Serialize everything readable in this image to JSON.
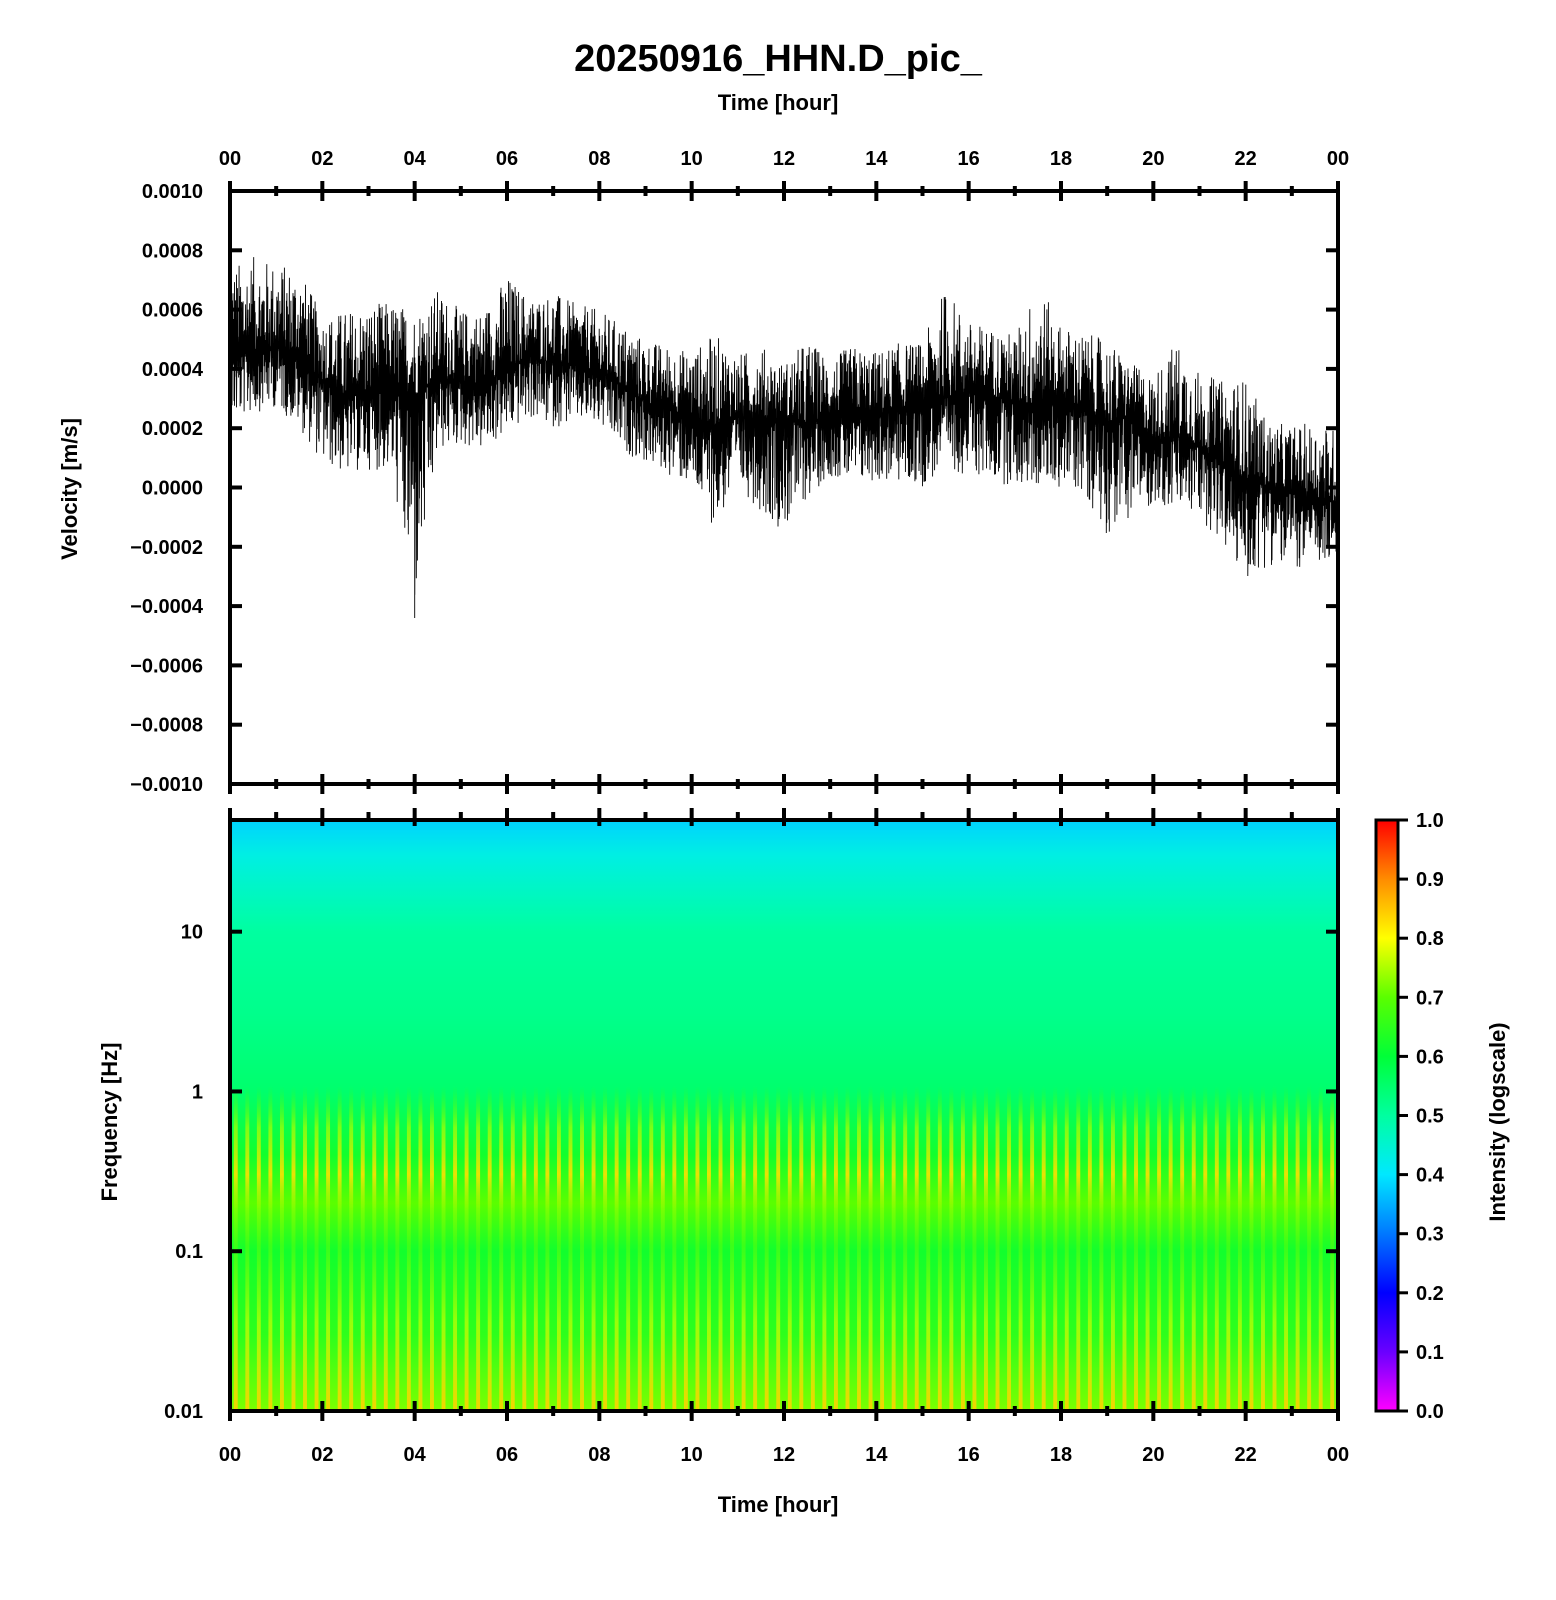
{
  "figure": {
    "title": "20250916_HHN.D_pic_",
    "top_xlabel": "Time [hour]",
    "bottom_xlabel": "Time [hour]",
    "colorbar_label": "Intensity (logscale)"
  },
  "chart_data": [
    {
      "type": "line",
      "ylabel": "Velocity [m/s]",
      "xlabel": "Time [hour]",
      "xlim": [
        0,
        24
      ],
      "ylim": [
        -0.001,
        0.001
      ],
      "xticks": [
        "00",
        "02",
        "04",
        "06",
        "08",
        "10",
        "12",
        "14",
        "16",
        "18",
        "20",
        "22",
        "00"
      ],
      "yticks": [
        "0.0010",
        "0.0008",
        "0.0006",
        "0.0004",
        "0.0002",
        "0.0000",
        "−0.0002",
        "−0.0004",
        "−0.0006",
        "−0.0008",
        "−0.0010"
      ],
      "series": [
        {
          "x": [
            0,
            0.5,
            1,
            1.5,
            2,
            2.5,
            3,
            3.5,
            4,
            4.5,
            5,
            5.5,
            6,
            6.5,
            7,
            7.5,
            8,
            8.5,
            9,
            9.5,
            10,
            10.5,
            11,
            11.5,
            12,
            12.5,
            13,
            13.5,
            14,
            14.5,
            15,
            15.5,
            16,
            16.5,
            17,
            17.5,
            18,
            18.5,
            19,
            19.5,
            20,
            20.5,
            21,
            21.5,
            22,
            22.5,
            23,
            23.5,
            24
          ],
          "y": [
            0.00043,
            0.00046,
            0.00047,
            0.00044,
            0.00036,
            0.0003,
            0.00032,
            0.00033,
            0.00031,
            0.00037,
            0.00036,
            0.00035,
            0.0004,
            0.00044,
            0.00042,
            0.00041,
            0.00039,
            0.00034,
            0.00029,
            0.00026,
            0.00024,
            0.00021,
            0.00024,
            0.00022,
            0.00023,
            0.00021,
            0.00024,
            0.00023,
            0.00024,
            0.00026,
            0.00026,
            0.0003,
            0.00032,
            0.00031,
            0.00029,
            0.00026,
            0.00029,
            0.00027,
            0.00022,
            0.00024,
            0.00016,
            0.00017,
            0.00014,
            8e-05,
            3e-05,
            0.0,
            -2e-05,
            -4e-05,
            -5e-05
          ],
          "envelope_high": [
            0.00075,
            0.00078,
            0.00076,
            0.00074,
            0.00058,
            0.0006,
            0.00062,
            0.00063,
            0.0006,
            0.00067,
            0.0006,
            0.0006,
            0.00072,
            0.00064,
            0.00066,
            0.00062,
            0.0006,
            0.00055,
            0.0005,
            0.00048,
            0.00046,
            0.00052,
            0.00045,
            0.00048,
            0.00042,
            0.0005,
            0.00044,
            0.00048,
            0.00046,
            0.00049,
            0.00049,
            0.00068,
            0.00056,
            0.00054,
            0.00052,
            0.00069,
            0.00055,
            0.00052,
            0.0005,
            0.00042,
            0.00038,
            0.0005,
            0.00039,
            0.00036,
            0.00037,
            0.00022,
            0.00021,
            0.00022,
            0.0002
          ],
          "envelope_low": [
            0.00022,
            0.00025,
            0.00027,
            0.0002,
            8e-05,
            4e-05,
            6e-05,
            5e-05,
            -0.00044,
            0.00012,
            0.00014,
            0.00012,
            0.00018,
            0.00023,
            0.0002,
            0.00022,
            0.0002,
            0.00012,
            8e-05,
            4e-05,
            0.0,
            -0.00014,
            0.0,
            -8e-05,
            -0.00015,
            -4e-05,
            4e-05,
            0.0,
            2e-05,
            1e-05,
            0.0,
            6e-05,
            4e-05,
            2e-05,
            0.0,
            0.0,
            0.0,
            -2e-05,
            -0.00016,
            -0.0001,
            -6e-05,
            -8e-05,
            -0.0001,
            -0.0002,
            -0.00032,
            -0.00026,
            -0.00028,
            -0.00026,
            -0.00028
          ]
        }
      ]
    },
    {
      "type": "heatmap",
      "ylabel": "Frequency [Hz]",
      "xlabel": "Time [hour]",
      "xlim": [
        0,
        24
      ],
      "ylim": [
        0.01,
        50
      ],
      "yscale": "log",
      "xticks": [
        "00",
        "02",
        "04",
        "06",
        "08",
        "10",
        "12",
        "14",
        "16",
        "18",
        "20",
        "22",
        "00"
      ],
      "yticks": [
        "10",
        "1",
        "0.1",
        "0.01"
      ],
      "colorbar": {
        "label": "Intensity (logscale)",
        "range": [
          0.0,
          1.0
        ],
        "ticks": [
          "1.0",
          "0.9",
          "0.8",
          "0.7",
          "0.6",
          "0.5",
          "0.4",
          "0.3",
          "0.2",
          "0.1",
          "0.0"
        ],
        "colors": [
          "#ff00ff",
          "#6a00ff",
          "#0000ff",
          "#0078ff",
          "#00e8ff",
          "#00ffa0",
          "#00ff38",
          "#5aff00",
          "#ffff00",
          "#ff8c00",
          "#ff0000"
        ]
      },
      "rows": [
        {
          "freq_hz": 50,
          "intensity": 0.38
        },
        {
          "freq_hz": 30,
          "intensity": 0.43
        },
        {
          "freq_hz": 10,
          "intensity": 0.5
        },
        {
          "freq_hz": 3,
          "intensity": 0.52
        },
        {
          "freq_hz": 1,
          "intensity": 0.55
        },
        {
          "freq_hz": 0.4,
          "intensity": 0.62
        },
        {
          "freq_hz": 0.2,
          "intensity": 0.7
        },
        {
          "freq_hz": 0.1,
          "intensity": 0.62
        },
        {
          "freq_hz": 0.03,
          "intensity": 0.65
        },
        {
          "freq_hz": 0.01,
          "intensity": 0.72
        }
      ],
      "columns_per_day": 96
    }
  ]
}
